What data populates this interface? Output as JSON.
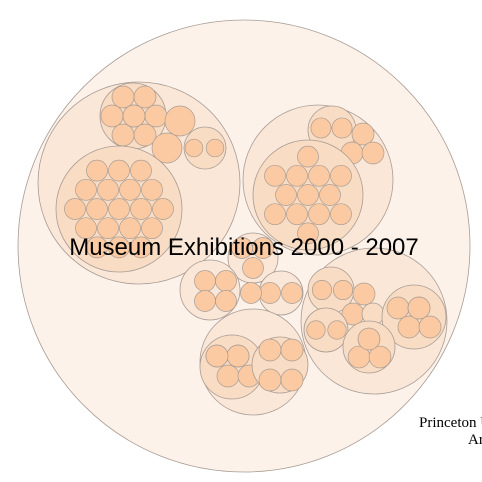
{
  "chart_data": {
    "type": "circle-packing",
    "title": "Museum Exhibitions 2000 - 2007",
    "credit_lines": [
      "Princeton U",
      "Ar"
    ],
    "colors": {
      "outer": "#fdf2ea",
      "group": "#fae7d8",
      "subgroup": "#f8dcc3",
      "leaf": "#fbcaa2",
      "stroke": "#a89c94"
    },
    "tree": {
      "children": [
        {
          "children": [
            {
              "children": [
                {
                  "value": 1
                },
                {
                  "value": 1
                },
                {
                  "value": 1
                },
                {
                  "value": 1
                },
                {
                  "value": 1
                },
                {
                  "value": 1
                },
                {
                  "value": 1
                },
                {
                  "value": 1
                }
              ]
            },
            {
              "value": 1
            },
            {
              "value": 1
            },
            {
              "children": [
                {
                  "value": 1
                },
                {
                  "value": 1
                }
              ]
            },
            {
              "children": [
                {
                  "value": 1
                },
                {
                  "value": 1
                },
                {
                  "value": 1
                },
                {
                  "value": 1
                },
                {
                  "value": 1
                },
                {
                  "value": 1
                },
                {
                  "value": 1
                },
                {
                  "value": 1
                },
                {
                  "value": 1
                },
                {
                  "value": 1
                },
                {
                  "value": 1
                },
                {
                  "value": 1
                },
                {
                  "value": 1
                },
                {
                  "value": 1
                },
                {
                  "value": 1
                },
                {
                  "value": 1
                },
                {
                  "value": 1
                },
                {
                  "value": 1
                },
                {
                  "value": 1
                },
                {
                  "value": 1
                },
                {
                  "value": 1
                },
                {
                  "value": 1
                },
                {
                  "value": 1
                },
                {
                  "value": 1
                },
                {
                  "value": 1
                },
                {
                  "value": 1
                },
                {
                  "value": 1
                },
                {
                  "value": 1
                },
                {
                  "value": 1
                },
                {
                  "value": 1
                },
                {
                  "value": 1
                },
                {
                  "value": 1
                },
                {
                  "value": 1
                },
                {
                  "value": 1
                },
                {
                  "value": 1
                },
                {
                  "value": 1
                }
              ]
            }
          ]
        },
        {
          "children": [
            {
              "children": [
                {
                  "value": 1
                },
                {
                  "value": 1
                }
              ]
            },
            {
              "value": 1
            },
            {
              "value": 1
            },
            {
              "value": 1
            },
            {
              "children": [
                {
                  "value": 1
                },
                {
                  "value": 1
                },
                {
                  "value": 1
                },
                {
                  "value": 1
                },
                {
                  "value": 1
                },
                {
                  "value": 1
                },
                {
                  "value": 1
                },
                {
                  "value": 1
                },
                {
                  "value": 1
                },
                {
                  "value": 1
                },
                {
                  "value": 1
                },
                {
                  "value": 1
                },
                {
                  "value": 1
                },
                {
                  "value": 1
                },
                {
                  "value": 1
                },
                {
                  "value": 1
                },
                {
                  "value": 1
                },
                {
                  "value": 1
                },
                {
                  "value": 1
                },
                {
                  "value": 1
                },
                {
                  "value": 1
                },
                {
                  "value": 1
                },
                {
                  "value": 1
                },
                {
                  "value": 1
                },
                {
                  "value": 1
                },
                {
                  "value": 1
                },
                {
                  "value": 1
                },
                {
                  "value": 1
                },
                {
                  "value": 1
                },
                {
                  "value": 1
                },
                {
                  "value": 1
                },
                {
                  "value": 1
                }
              ]
            }
          ]
        },
        {
          "children": [
            {
              "value": 1
            },
            {
              "value": 1
            },
            {
              "value": 1
            }
          ]
        },
        {
          "children": [
            {
              "value": 1
            },
            {
              "value": 1
            },
            {
              "value": 1
            },
            {
              "value": 1
            }
          ]
        },
        {
          "children": [
            {
              "value": 1
            },
            {
              "value": 1
            },
            {
              "value": 1
            }
          ]
        },
        {
          "children": [
            {
              "children": [
                {
                  "value": 1
                },
                {
                  "value": 1
                },
                {
                  "value": 1
                },
                {
                  "value": 1
                },
                {
                  "value": 1
                },
                {
                  "value": 1
                }
              ]
            },
            {
              "children": [
                {
                  "value": 1
                },
                {
                  "value": 1
                },
                {
                  "value": 1
                },
                {
                  "value": 1
                }
              ]
            }
          ]
        },
        {
          "children": [
            {
              "children": [
                {
                  "value": 1
                },
                {
                  "value": 1
                }
              ]
            },
            {
              "value": 1
            },
            {
              "value": 1
            },
            {
              "children": [
                {
                  "value": 1
                },
                {
                  "value": 1
                },
                {
                  "value": 1
                },
                {
                  "value": 1
                }
              ]
            },
            {
              "children": [
                {
                  "value": 1
                },
                {
                  "value": 1
                }
              ]
            },
            {
              "children": [
                {
                  "value": 1
                },
                {
                  "value": 1
                },
                {
                  "value": 1
                },
                {
                  "value": 1
                },
                {
                  "value": 1
                }
              ]
            },
            {
              "children": [
                {
                  "value": 1
                },
                {
                  "value": 1
                },
                {
                  "value": 1
                },
                {
                  "value": 1
                }
              ]
            }
          ]
        }
      ]
    }
  }
}
